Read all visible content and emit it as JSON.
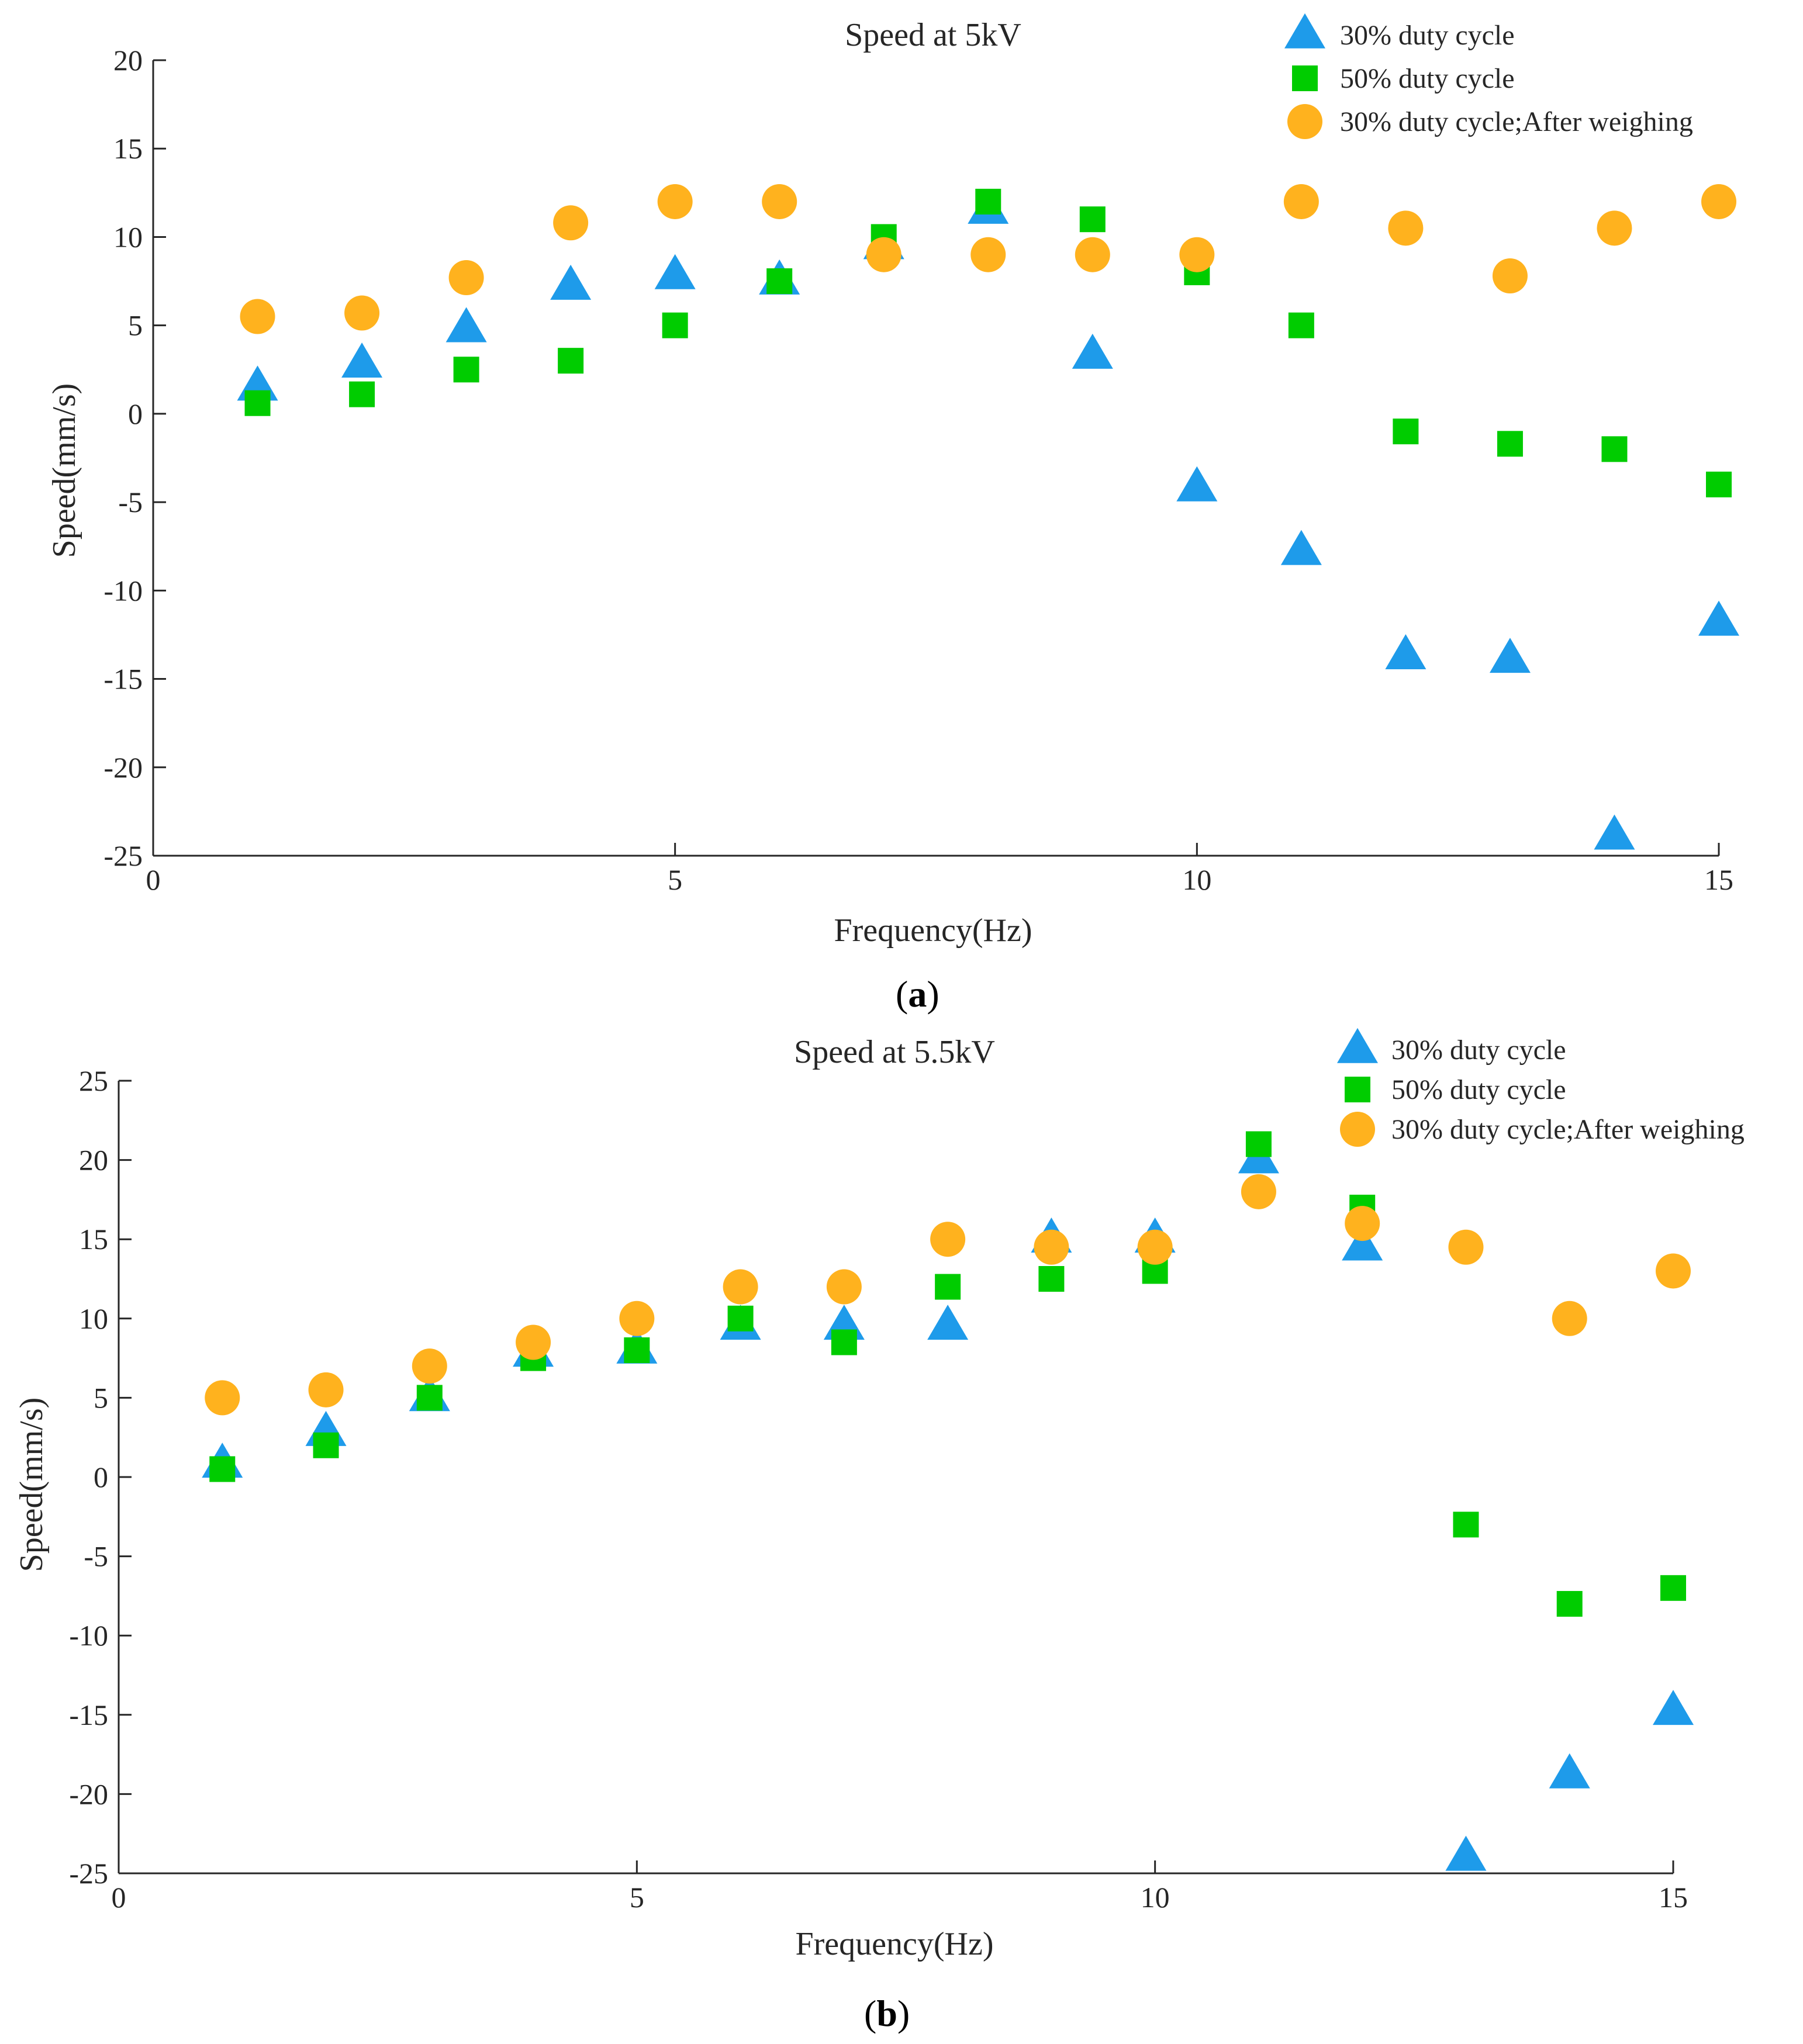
{
  "figure": {
    "colors": {
      "triangle": "#1E9BEA",
      "square": "#00CC00",
      "circle": "#FFB21E",
      "axis": "#262626"
    },
    "marker_shapes": [
      "triangle",
      "square",
      "circle"
    ]
  },
  "chart_data": [
    {
      "type": "scatter",
      "panel_label": "a",
      "title": "Speed at 5kV",
      "xlabel": "Frequency(Hz)",
      "ylabel": "Speed(mm/s)",
      "xlim": [
        0,
        15
      ],
      "ylim": [
        -25,
        20
      ],
      "xticks": [
        0,
        5,
        10,
        15
      ],
      "yticks": [
        -25,
        -20,
        -15,
        -10,
        -5,
        0,
        5,
        10,
        15,
        20
      ],
      "grid": false,
      "legend_position": "top-right",
      "x": [
        1,
        2,
        3,
        4,
        5,
        6,
        7,
        8,
        9,
        10,
        11,
        12,
        13,
        14,
        15
      ],
      "series": [
        {
          "name": "30% duty cycle",
          "marker": "triangle",
          "values": [
            1.5,
            2.8,
            4.8,
            7.2,
            7.8,
            7.5,
            9.5,
            11.5,
            3.3,
            -4.2,
            -7.8,
            -13.7,
            -13.9,
            -23.9,
            -11.8
          ]
        },
        {
          "name": "50% duty cycle",
          "marker": "square",
          "values": [
            0.6,
            1.1,
            2.5,
            3.0,
            5.0,
            7.5,
            10.0,
            12.0,
            11.0,
            8.0,
            5.0,
            -1.0,
            -1.7,
            -2.0,
            -4.0
          ]
        },
        {
          "name": "30% duty cycle;After weighing",
          "marker": "circle",
          "values": [
            5.5,
            5.7,
            7.7,
            10.8,
            12.0,
            12.0,
            9.0,
            9.0,
            9.0,
            9.0,
            12.0,
            10.5,
            7.8,
            10.5,
            12.0
          ]
        }
      ]
    },
    {
      "type": "scatter",
      "panel_label": "b",
      "title": "Speed at 5.5kV",
      "xlabel": "Frequency(Hz)",
      "ylabel": "Speed(mm/s)",
      "xlim": [
        0,
        15
      ],
      "ylim": [
        -25,
        25
      ],
      "xticks": [
        0,
        5,
        10,
        15
      ],
      "yticks": [
        -25,
        -20,
        -15,
        -10,
        -5,
        0,
        5,
        10,
        15,
        20,
        25
      ],
      "grid": false,
      "legend_position": "top-right",
      "x": [
        1,
        2,
        3,
        4,
        5,
        6,
        7,
        8,
        9,
        10,
        11,
        12,
        13,
        14,
        15
      ],
      "series": [
        {
          "name": "30% duty cycle",
          "marker": "triangle",
          "values": [
            0.8,
            2.8,
            5.0,
            7.8,
            8.0,
            9.5,
            9.5,
            9.5,
            15.0,
            15.0,
            20.0,
            14.5,
            -24.0,
            -18.8,
            -14.8
          ]
        },
        {
          "name": "50% duty cycle",
          "marker": "square",
          "values": [
            0.5,
            2.0,
            5.0,
            7.5,
            8.0,
            10.0,
            8.5,
            12.0,
            12.5,
            13.0,
            21.0,
            17.0,
            -3.0,
            -8.0,
            -7.0
          ]
        },
        {
          "name": "30% duty cycle;After weighing",
          "marker": "circle",
          "values": [
            5.0,
            5.5,
            7.0,
            8.5,
            10.0,
            12.0,
            12.0,
            15.0,
            14.5,
            14.5,
            18.0,
            16.0,
            14.5,
            10.0,
            13.0
          ]
        }
      ]
    }
  ]
}
